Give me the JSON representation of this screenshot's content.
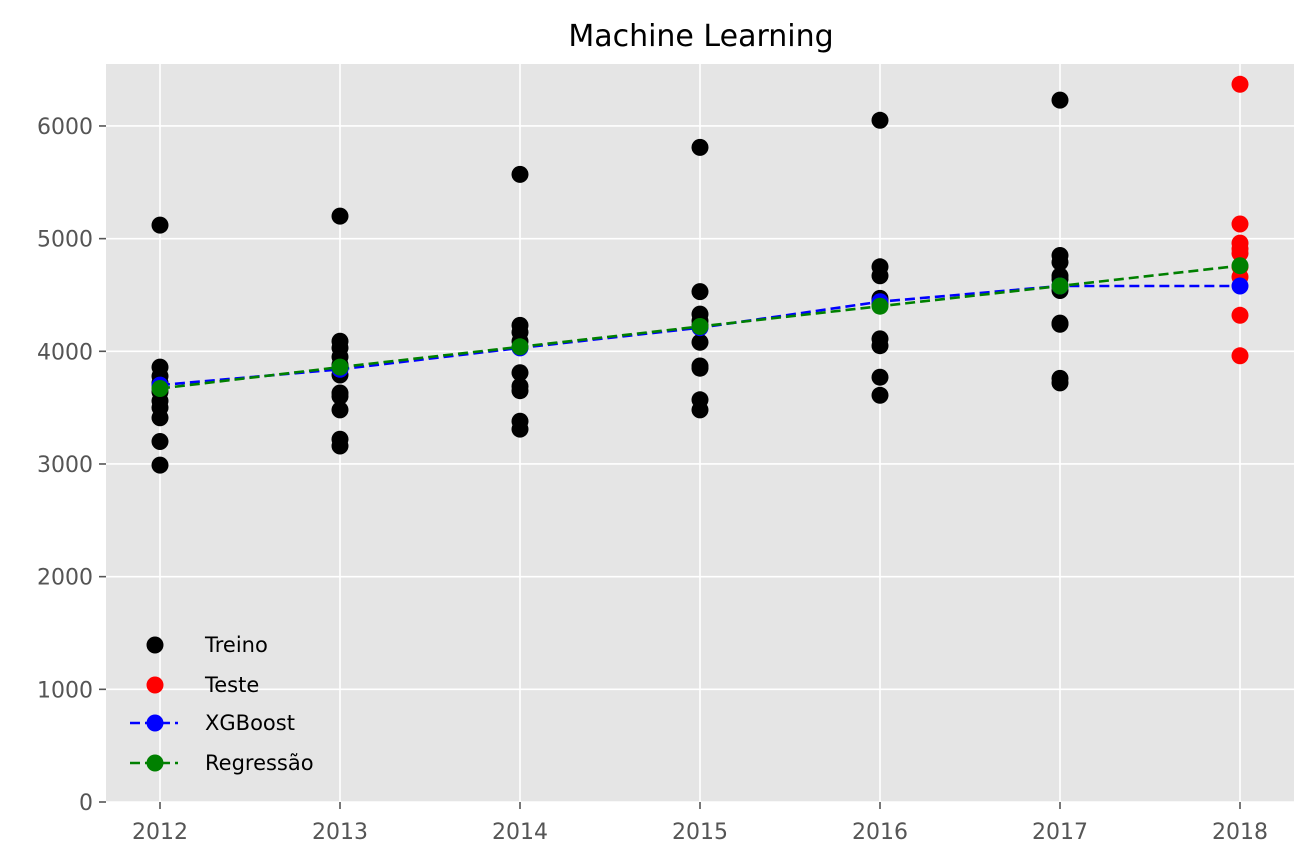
{
  "chart_data": {
    "type": "scatter",
    "title": "Machine Learning",
    "xlabel": "",
    "ylabel": "",
    "x_ticks": [
      2012,
      2013,
      2014,
      2015,
      2016,
      2017,
      2018
    ],
    "y_ticks": [
      0,
      1000,
      2000,
      3000,
      4000,
      5000,
      6000
    ],
    "xlim": [
      2011.7,
      2018.3
    ],
    "ylim": [
      0,
      6550
    ],
    "grid": true,
    "legend_position": "lower-left",
    "colors": {
      "background": "#e5e5e5",
      "grid": "#ffffff",
      "treino": "#000000",
      "teste": "#ff0000",
      "xgboost": "#0000ff",
      "regressao": "#008000"
    },
    "series": [
      {
        "name": "Treino",
        "kind": "points",
        "color": "#000000",
        "points": [
          [
            2012,
            5120
          ],
          [
            2012,
            3860
          ],
          [
            2012,
            3780
          ],
          [
            2012,
            3720
          ],
          [
            2012,
            3640
          ],
          [
            2012,
            3560
          ],
          [
            2012,
            3500
          ],
          [
            2012,
            3410
          ],
          [
            2012,
            3200
          ],
          [
            2012,
            2990
          ],
          [
            2013,
            5200
          ],
          [
            2013,
            4090
          ],
          [
            2013,
            4030
          ],
          [
            2013,
            3950
          ],
          [
            2013,
            3880
          ],
          [
            2013,
            3790
          ],
          [
            2013,
            3630
          ],
          [
            2013,
            3600
          ],
          [
            2013,
            3480
          ],
          [
            2013,
            3220
          ],
          [
            2013,
            3160
          ],
          [
            2014,
            5570
          ],
          [
            2014,
            4230
          ],
          [
            2014,
            4170
          ],
          [
            2014,
            4090
          ],
          [
            2014,
            3810
          ],
          [
            2014,
            3690
          ],
          [
            2014,
            3650
          ],
          [
            2014,
            3380
          ],
          [
            2014,
            3310
          ],
          [
            2015,
            5810
          ],
          [
            2015,
            4530
          ],
          [
            2015,
            4330
          ],
          [
            2015,
            4270
          ],
          [
            2015,
            4230
          ],
          [
            2015,
            4080
          ],
          [
            2015,
            3870
          ],
          [
            2015,
            3850
          ],
          [
            2015,
            3570
          ],
          [
            2015,
            3480
          ],
          [
            2016,
            6050
          ],
          [
            2016,
            4750
          ],
          [
            2016,
            4670
          ],
          [
            2016,
            4470
          ],
          [
            2016,
            4450
          ],
          [
            2016,
            4420
          ],
          [
            2016,
            4110
          ],
          [
            2016,
            4050
          ],
          [
            2016,
            3770
          ],
          [
            2016,
            3610
          ],
          [
            2017,
            6230
          ],
          [
            2017,
            4850
          ],
          [
            2017,
            4790
          ],
          [
            2017,
            4670
          ],
          [
            2017,
            4640
          ],
          [
            2017,
            4580
          ],
          [
            2017,
            4540
          ],
          [
            2017,
            4250
          ],
          [
            2017,
            4240
          ],
          [
            2017,
            3760
          ],
          [
            2017,
            3720
          ]
        ]
      },
      {
        "name": "Teste",
        "kind": "points",
        "color": "#ff0000",
        "points": [
          [
            2018,
            6370
          ],
          [
            2018,
            5130
          ],
          [
            2018,
            4960
          ],
          [
            2018,
            4910
          ],
          [
            2018,
            4870
          ],
          [
            2018,
            4750
          ],
          [
            2018,
            4660
          ],
          [
            2018,
            4320
          ],
          [
            2018,
            3960
          ]
        ]
      },
      {
        "name": "XGBoost",
        "kind": "dashed-line",
        "color": "#0000ff",
        "points": [
          [
            2012,
            3700
          ],
          [
            2013,
            3840
          ],
          [
            2014,
            4030
          ],
          [
            2015,
            4210
          ],
          [
            2016,
            4440
          ],
          [
            2017,
            4580
          ],
          [
            2018,
            4580
          ]
        ]
      },
      {
        "name": "Regressão",
        "kind": "dashed-line",
        "color": "#008000",
        "points": [
          [
            2012,
            3670
          ],
          [
            2013,
            3860
          ],
          [
            2014,
            4040
          ],
          [
            2015,
            4220
          ],
          [
            2016,
            4400
          ],
          [
            2017,
            4580
          ],
          [
            2018,
            4760
          ]
        ]
      }
    ]
  }
}
